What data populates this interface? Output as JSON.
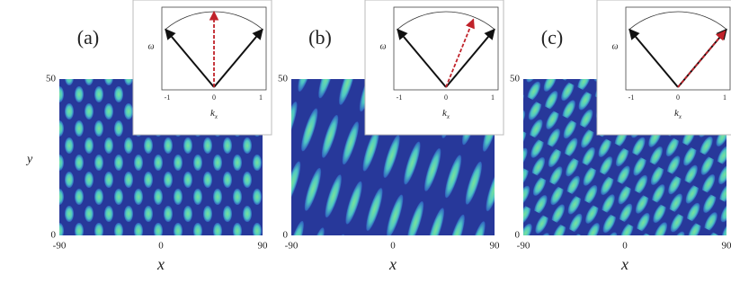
{
  "y_label": "y",
  "panels": [
    {
      "label": "(a)",
      "y_ticks": [
        "50",
        "0"
      ],
      "x_ticks": [
        "-90",
        "0",
        "90"
      ],
      "x_label": "x",
      "inset": {
        "y_label": "ω",
        "x_ticks": [
          "-1",
          "0",
          "1"
        ],
        "x_label": "k",
        "x_label_sub": "x"
      }
    },
    {
      "label": "(b)",
      "y_ticks": [
        "50",
        "0"
      ],
      "x_ticks": [
        "-90",
        "0",
        "90"
      ],
      "x_label": "x",
      "inset": {
        "y_label": "ω",
        "x_ticks": [
          "-1",
          "0",
          "1"
        ],
        "x_label": "k",
        "x_label_sub": "x"
      }
    },
    {
      "label": "(c)",
      "y_ticks": [
        "50",
        "0"
      ],
      "x_ticks": [
        "-90",
        "0",
        "90"
      ],
      "x_label": "x",
      "inset": {
        "y_label": "ω",
        "x_ticks": [
          "-1",
          "0",
          "1"
        ],
        "x_label": "k",
        "x_label_sub": "x"
      }
    }
  ]
}
